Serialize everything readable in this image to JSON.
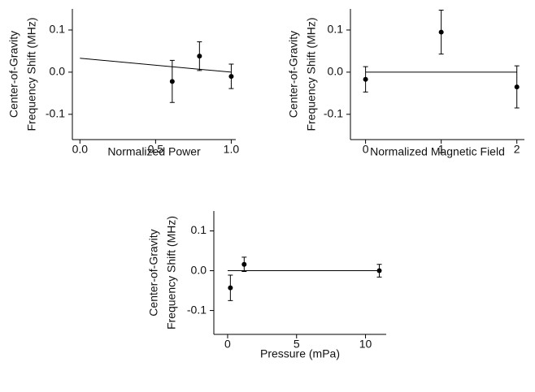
{
  "chart_data": [
    {
      "type": "scatter",
      "xlabel": "Normalized Power",
      "ylabel": [
        "Center-of-Gravity",
        "Frequency Shift (MHz)"
      ],
      "x": [
        0.61,
        0.79,
        1.0
      ],
      "series": [
        {
          "color": "#000000",
          "values": [
            -0.022,
            0.038,
            -0.01
          ],
          "errors": [
            0.05,
            0.034,
            0.029
          ]
        }
      ],
      "line": {
        "x": [
          0,
          1.0
        ],
        "y": [
          0.033,
          0.0
        ]
      },
      "xlim": [
        -0.05,
        1.03
      ],
      "ylim": [
        -0.16,
        0.15
      ],
      "xticks": [
        {
          "value": 0,
          "label": "0.0"
        },
        0.5,
        {
          "value": 1,
          "label": "1.0"
        }
      ],
      "yticks": [
        0.1,
        {
          "value": 0,
          "label": "0.0"
        },
        -0.1
      ]
    },
    {
      "type": "scatter",
      "xlabel": "Normalized Magnetic Field",
      "ylabel": [
        "Center-of-Gravity",
        "Frequency Shift (MHz)"
      ],
      "x": [
        0,
        1,
        2
      ],
      "series": [
        {
          "color": "#000000",
          "values": [
            -0.017,
            0.095,
            -0.035
          ],
          "errors": [
            0.03,
            0.052,
            0.05
          ]
        }
      ],
      "line": {
        "x": [
          0,
          2
        ],
        "y": [
          0,
          0
        ]
      },
      "xlim": [
        -0.2,
        2.1
      ],
      "ylim": [
        -0.16,
        0.15
      ],
      "xticks": [
        0,
        1,
        2
      ],
      "yticks": [
        0.1,
        {
          "value": 0,
          "label": "0.0"
        },
        -0.1
      ]
    },
    {
      "type": "scatter",
      "xlabel": "Pressure (mPa)",
      "ylabel": [
        "Center-of-Gravity",
        "Frequency Shift (MHz)"
      ],
      "x": [
        0.2,
        1.2,
        11
      ],
      "series": [
        {
          "color": "#000000",
          "values": [
            -0.043,
            0.016,
            0.0
          ],
          "errors": [
            0.032,
            0.018,
            0.016
          ]
        }
      ],
      "line": {
        "x": [
          0,
          11
        ],
        "y": [
          0,
          0
        ]
      },
      "xlim": [
        -1,
        11.5
      ],
      "ylim": [
        -0.16,
        0.15
      ],
      "xticks": [
        0,
        5,
        10
      ],
      "yticks": [
        0.1,
        {
          "value": 0,
          "label": "0.0"
        },
        -0.1
      ]
    }
  ]
}
